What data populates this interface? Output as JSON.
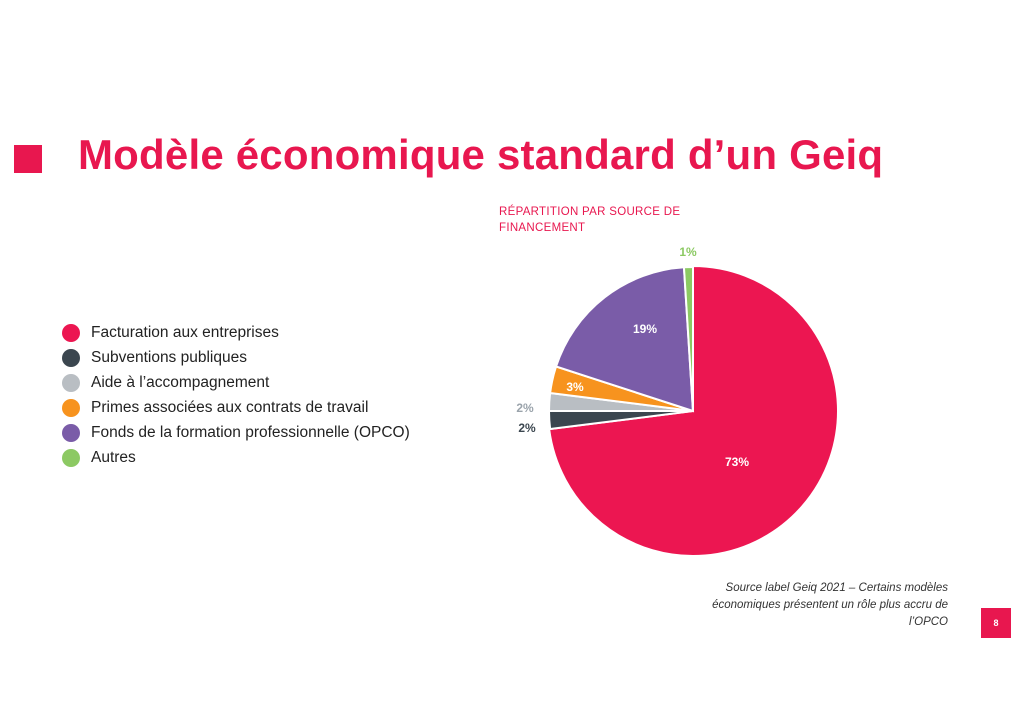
{
  "slide": {
    "title": "Modèle économique standard d’un Geiq",
    "accent_color": "#e8174f",
    "source_note": "Source label Geiq 2021 – Certains modèles économiques présentent un rôle plus accru de l’OPCO",
    "page_number": "8"
  },
  "chart_data": {
    "type": "pie",
    "title": "RÉPARTITION PAR SOURCE DE FINANCEMENT",
    "legend_position": "left",
    "categories": [
      "Facturation aux entreprises",
      "Subventions publiques",
      "Aide à l’accompagnement",
      "Primes associées aux contrats de travail",
      "Fonds de la formation professionnelle (OPCO)",
      "Autres"
    ],
    "values": [
      73,
      2,
      2,
      3,
      19,
      1
    ],
    "labels": [
      "73%",
      "2%",
      "2%",
      "3%",
      "19%",
      "1%"
    ],
    "colors": [
      "#ec1651",
      "#3b464f",
      "#b9bec3",
      "#f7931e",
      "#7a5ca8",
      "#8cc963"
    ],
    "label_colors": [
      "#ffffff",
      "#3b464f",
      "#9aa3ab",
      "#ffffff",
      "#ffffff",
      "#8cc963"
    ]
  }
}
